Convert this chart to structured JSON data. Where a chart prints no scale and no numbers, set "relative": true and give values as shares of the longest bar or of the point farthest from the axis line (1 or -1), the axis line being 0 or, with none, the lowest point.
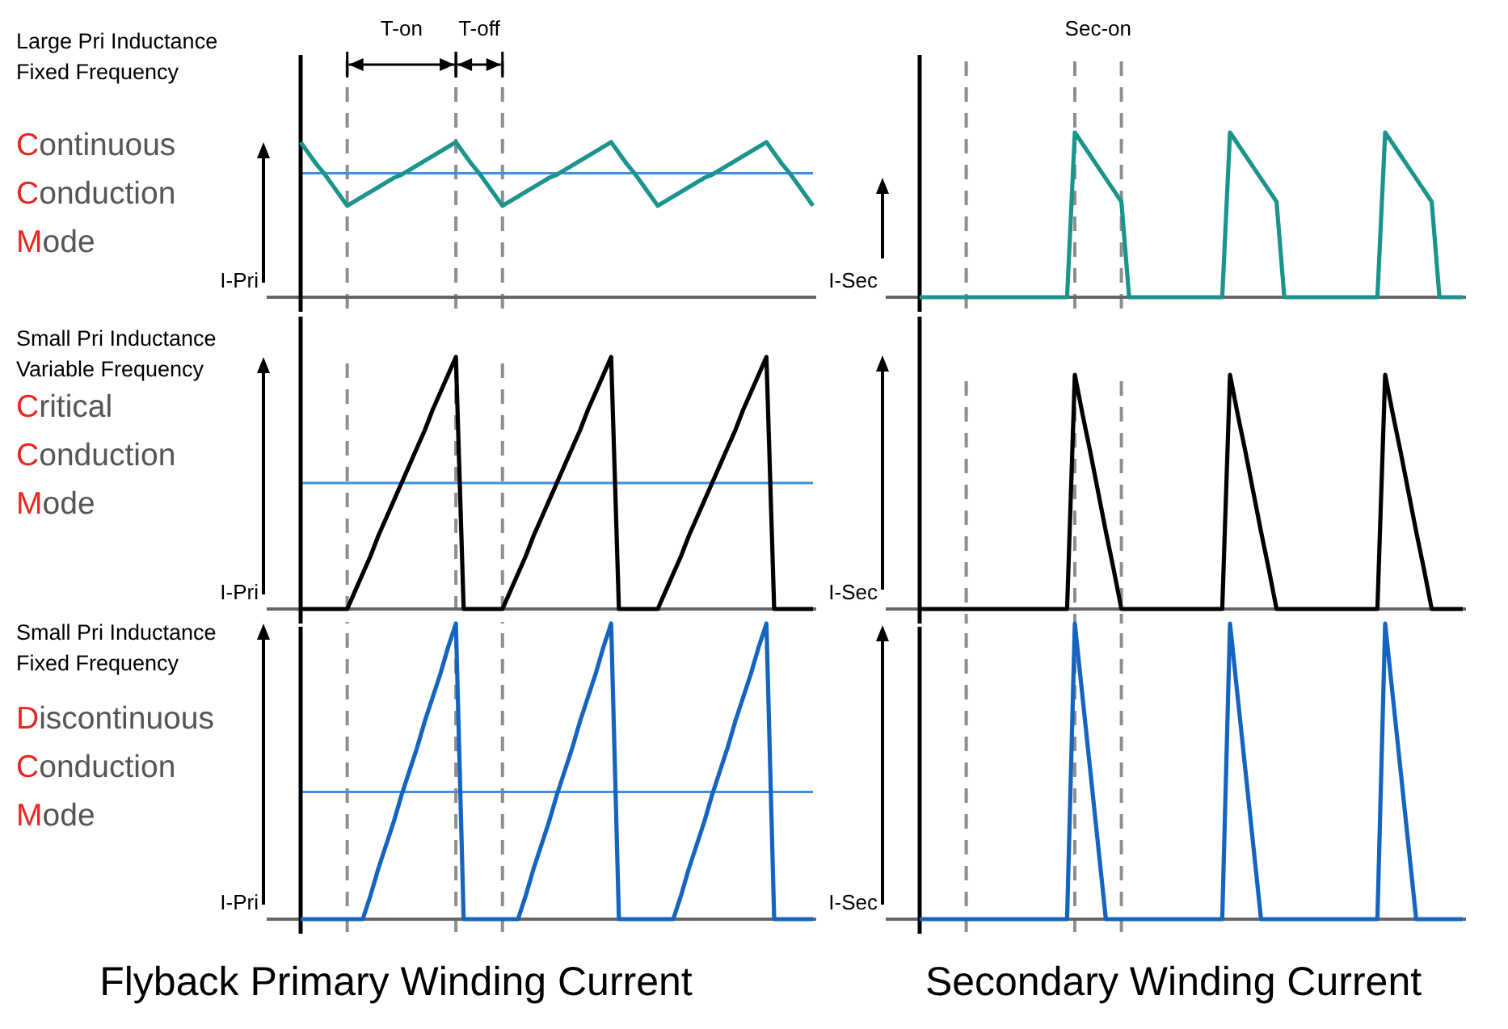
{
  "chart_data": [
    {
      "type": "line",
      "relative": true,
      "title": "Large Pri Inductance Fixed Frequency",
      "subtitle": "Continuous Conduction Mode",
      "ylabel": "I-Pri",
      "categories": [
        null,
        null,
        null,
        null,
        null,
        null,
        null,
        null,
        null,
        null,
        null,
        null,
        null,
        null,
        null,
        null,
        null,
        null,
        null,
        null,
        null,
        null,
        null,
        null,
        null,
        null,
        null,
        null,
        null,
        null,
        null,
        null,
        null,
        null,
        null,
        null,
        null,
        null,
        null,
        null,
        null,
        null,
        null,
        null,
        null,
        null,
        null,
        null,
        null,
        null,
        null,
        null,
        null,
        null,
        null,
        null,
        null,
        null,
        null,
        null,
        null,
        null,
        null,
        null,
        null,
        null,
        null
      ],
      "series": [
        {
          "color": "#1a948c",
          "values": [
            1,
            0.93,
            0.86,
            0.8,
            0.73,
            0.66,
            0.59,
            0.62,
            0.65,
            0.68,
            0.71,
            0.74,
            0.77,
            0.79,
            0.82,
            0.85,
            0.88,
            0.91,
            0.94,
            0.97,
            1,
            0.93,
            0.86,
            0.8,
            0.73,
            0.66,
            0.59,
            0.62,
            0.65,
            0.68,
            0.71,
            0.74,
            0.77,
            0.79,
            0.82,
            0.85,
            0.88,
            0.91,
            0.94,
            0.97,
            1,
            0.93,
            0.86,
            0.8,
            0.73,
            0.66,
            0.59,
            0.62,
            0.65,
            0.68,
            0.71,
            0.74,
            0.77,
            0.79,
            0.82,
            0.85,
            0.88,
            0.91,
            0.94,
            0.97,
            1,
            0.93,
            0.86,
            0.8,
            0.73,
            0.66,
            0.59
          ]
        }
      ],
      "grid": "x",
      "ref_lines": [
        {
          "axis": "y",
          "value": 0.8,
          "color": "#3d8fe0"
        }
      ],
      "annotations": [
        "T-on",
        "T-off"
      ]
    },
    {
      "type": "line",
      "relative": true,
      "ylabel": "I-Sec",
      "categories": [
        null,
        null,
        null,
        null,
        null,
        null,
        null,
        null,
        null,
        null,
        null,
        null,
        null,
        null,
        null,
        null,
        null,
        null,
        null,
        null,
        null,
        null,
        null,
        null,
        null,
        null,
        null,
        null,
        null,
        null,
        null,
        null,
        null,
        null,
        null,
        null,
        null,
        null,
        null,
        null,
        null,
        null,
        null,
        null,
        null,
        null,
        null,
        null,
        null,
        null,
        null,
        null,
        null,
        null,
        null,
        null,
        null,
        null,
        null,
        null,
        null,
        null,
        null,
        null,
        null,
        null,
        null,
        null,
        null,
        null,
        null
      ],
      "series": [
        {
          "color": "#1a948c",
          "values": [
            0,
            0,
            0,
            0,
            0,
            0,
            0,
            0,
            0,
            0,
            0,
            0,
            0,
            0,
            0,
            0,
            0,
            0,
            0,
            0,
            1,
            0.93,
            0.86,
            0.79,
            0.72,
            0.65,
            0.58,
            0,
            0,
            0,
            0,
            0,
            0,
            0,
            0,
            0,
            0,
            0,
            0,
            0,
            1,
            0.93,
            0.86,
            0.79,
            0.72,
            0.65,
            0.58,
            0,
            0,
            0,
            0,
            0,
            0,
            0,
            0,
            0,
            0,
            0,
            0,
            0,
            1,
            0.93,
            0.86,
            0.79,
            0.72,
            0.65,
            0.58,
            0,
            0,
            0,
            0
          ]
        }
      ],
      "grid": "x",
      "annotations": [
        "Sec-on"
      ]
    },
    {
      "type": "line",
      "relative": true,
      "title": "Small Pri Inductance Variable Frequency",
      "subtitle": "Critical Conduction Mode",
      "ylabel": "I-Pri",
      "categories": [
        null,
        null,
        null,
        null,
        null,
        null,
        null,
        null,
        null,
        null,
        null,
        null,
        null,
        null,
        null,
        null,
        null,
        null,
        null,
        null,
        null,
        null,
        null,
        null,
        null,
        null,
        null,
        null,
        null,
        null,
        null,
        null,
        null,
        null,
        null,
        null,
        null,
        null,
        null,
        null,
        null,
        null,
        null,
        null,
        null,
        null,
        null,
        null,
        null,
        null,
        null,
        null,
        null,
        null,
        null,
        null,
        null,
        null,
        null,
        null,
        null,
        null,
        null,
        null,
        null,
        null,
        null
      ],
      "series": [
        {
          "color": "#000000",
          "values": [
            0,
            0,
            0,
            0,
            0,
            0,
            0,
            0.07,
            0.14,
            0.21,
            0.29,
            0.36,
            0.43,
            0.5,
            0.57,
            0.64,
            0.71,
            0.79,
            0.86,
            0.93,
            1,
            0,
            0,
            0,
            0,
            0,
            0,
            0.07,
            0.14,
            0.21,
            0.29,
            0.36,
            0.43,
            0.5,
            0.57,
            0.64,
            0.71,
            0.79,
            0.86,
            0.93,
            1,
            0,
            0,
            0,
            0,
            0,
            0,
            0.07,
            0.14,
            0.21,
            0.29,
            0.36,
            0.43,
            0.5,
            0.57,
            0.64,
            0.71,
            0.79,
            0.86,
            0.93,
            1,
            0,
            0,
            0,
            0,
            0,
            0
          ]
        }
      ],
      "grid": "x",
      "ref_lines": [
        {
          "axis": "y",
          "value": 0.5,
          "color": "#3d8fe0"
        }
      ]
    },
    {
      "type": "line",
      "relative": true,
      "ylabel": "I-Sec",
      "categories": [
        null,
        null,
        null,
        null,
        null,
        null,
        null,
        null,
        null,
        null,
        null,
        null,
        null,
        null,
        null,
        null,
        null,
        null,
        null,
        null,
        null,
        null,
        null,
        null,
        null,
        null,
        null,
        null,
        null,
        null,
        null,
        null,
        null,
        null,
        null,
        null,
        null,
        null,
        null,
        null,
        null,
        null,
        null,
        null,
        null,
        null,
        null,
        null,
        null,
        null,
        null,
        null,
        null,
        null,
        null,
        null,
        null,
        null,
        null,
        null,
        null,
        null,
        null,
        null,
        null,
        null,
        null,
        null,
        null,
        null,
        null
      ],
      "series": [
        {
          "color": "#000000",
          "values": [
            0,
            0,
            0,
            0,
            0,
            0,
            0,
            0,
            0,
            0,
            0,
            0,
            0,
            0,
            0,
            0,
            0,
            0,
            0,
            0,
            1,
            0.83,
            0.67,
            0.5,
            0.33,
            0.17,
            0,
            0,
            0,
            0,
            0,
            0,
            0,
            0,
            0,
            0,
            0,
            0,
            0,
            0,
            1,
            0.83,
            0.67,
            0.5,
            0.33,
            0.17,
            0,
            0,
            0,
            0,
            0,
            0,
            0,
            0,
            0,
            0,
            0,
            0,
            0,
            0,
            1,
            0.83,
            0.67,
            0.5,
            0.33,
            0.17,
            0,
            0,
            0,
            0,
            0
          ]
        }
      ],
      "grid": "x"
    },
    {
      "type": "line",
      "relative": true,
      "title": "Small Pri Inductance Fixed Frequency",
      "subtitle": "Discontinuous Conduction Mode",
      "ylabel": "I-Pri",
      "xlabel": "Flyback Primary Winding Current",
      "categories": [
        null,
        null,
        null,
        null,
        null,
        null,
        null,
        null,
        null,
        null,
        null,
        null,
        null,
        null,
        null,
        null,
        null,
        null,
        null,
        null,
        null,
        null,
        null,
        null,
        null,
        null,
        null,
        null,
        null,
        null,
        null,
        null,
        null,
        null,
        null,
        null,
        null,
        null,
        null,
        null,
        null,
        null,
        null,
        null,
        null,
        null,
        null,
        null,
        null,
        null,
        null,
        null,
        null,
        null,
        null,
        null,
        null,
        null,
        null,
        null,
        null,
        null,
        null,
        null,
        null,
        null,
        null
      ],
      "series": [
        {
          "color": "#1565c0",
          "values": [
            0,
            0,
            0,
            0,
            0,
            0,
            0,
            0,
            0,
            0.08,
            0.17,
            0.25,
            0.33,
            0.42,
            0.5,
            0.58,
            0.67,
            0.75,
            0.83,
            0.92,
            1,
            0,
            0,
            0,
            0,
            0,
            0,
            0,
            0,
            0.08,
            0.17,
            0.25,
            0.33,
            0.42,
            0.5,
            0.58,
            0.67,
            0.75,
            0.83,
            0.92,
            1,
            0,
            0,
            0,
            0,
            0,
            0,
            0,
            0,
            0.08,
            0.17,
            0.25,
            0.33,
            0.42,
            0.5,
            0.58,
            0.67,
            0.75,
            0.83,
            0.92,
            1,
            0,
            0,
            0,
            0,
            0,
            0
          ]
        }
      ],
      "grid": "x",
      "ref_lines": [
        {
          "axis": "y",
          "value": 0.43,
          "color": "#3d8fe0"
        }
      ]
    },
    {
      "type": "line",
      "relative": true,
      "ylabel": "I-Sec",
      "xlabel": "Secondary Winding Current",
      "categories": [
        null,
        null,
        null,
        null,
        null,
        null,
        null,
        null,
        null,
        null,
        null,
        null,
        null,
        null,
        null,
        null,
        null,
        null,
        null,
        null,
        null,
        null,
        null,
        null,
        null,
        null,
        null,
        null,
        null,
        null,
        null,
        null,
        null,
        null,
        null,
        null,
        null,
        null,
        null,
        null,
        null,
        null,
        null,
        null,
        null,
        null,
        null,
        null,
        null,
        null,
        null,
        null,
        null,
        null,
        null,
        null,
        null,
        null,
        null,
        null,
        null,
        null,
        null,
        null,
        null,
        null,
        null,
        null,
        null,
        null,
        null
      ],
      "series": [
        {
          "color": "#1565c0",
          "values": [
            0,
            0,
            0,
            0,
            0,
            0,
            0,
            0,
            0,
            0,
            0,
            0,
            0,
            0,
            0,
            0,
            0,
            0,
            0,
            0,
            1,
            0.75,
            0.5,
            0.25,
            0,
            0,
            0,
            0,
            0,
            0,
            0,
            0,
            0,
            0,
            0,
            0,
            0,
            0,
            0,
            0,
            1,
            0.75,
            0.5,
            0.25,
            0,
            0,
            0,
            0,
            0,
            0,
            0,
            0,
            0,
            0,
            0,
            0,
            0,
            0,
            0,
            0,
            1,
            0.75,
            0.5,
            0.25,
            0,
            0,
            0,
            0,
            0,
            0,
            0
          ]
        }
      ],
      "grid": "x"
    }
  ]
}
